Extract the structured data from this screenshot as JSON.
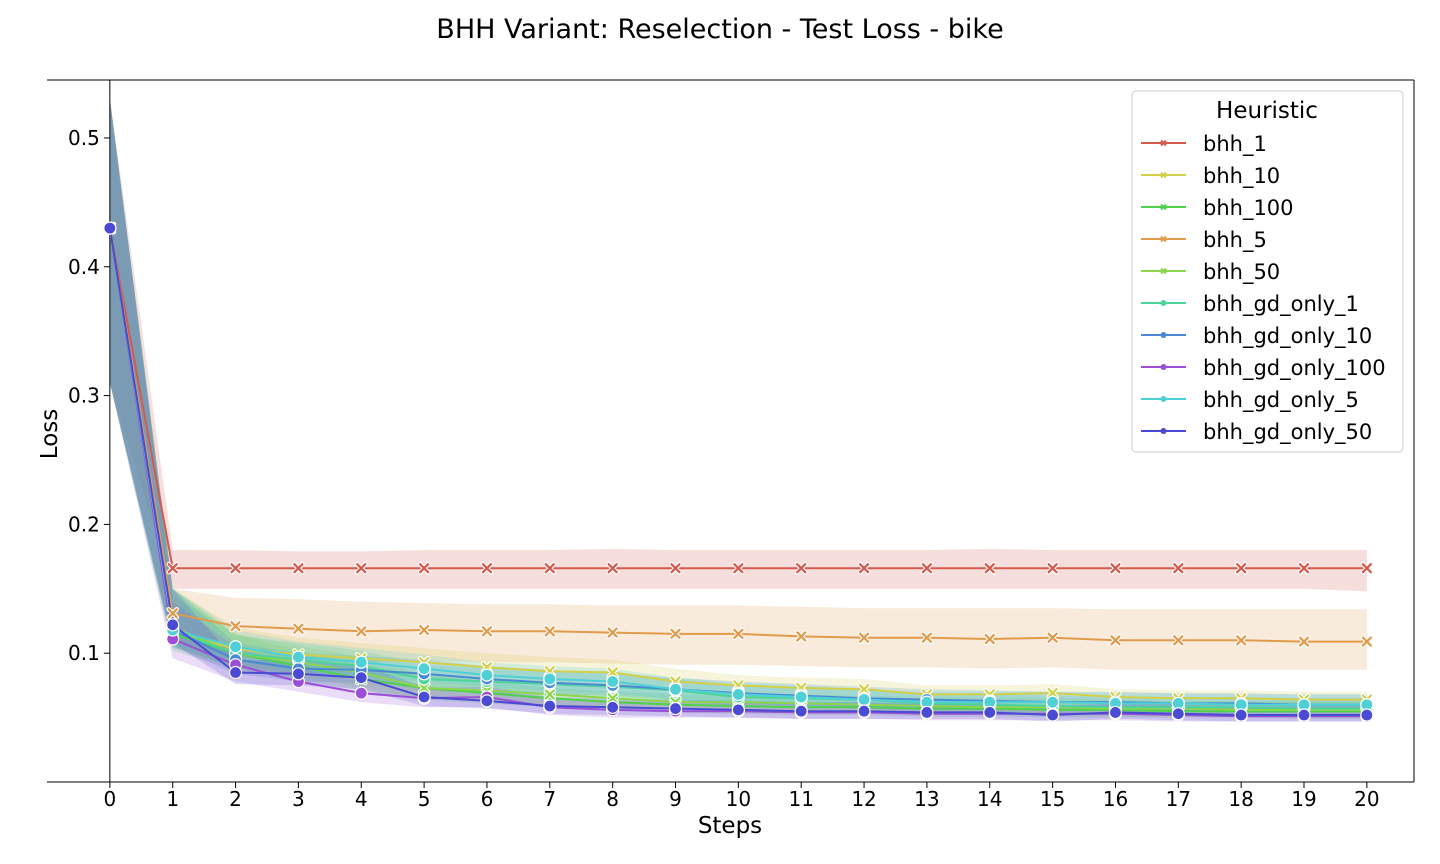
{
  "chart_data": {
    "type": "line",
    "title": "BHH Variant: Reselection - Test Loss - bike",
    "xlabel": "Steps",
    "ylabel": "Loss",
    "x": [
      0,
      1,
      2,
      3,
      4,
      5,
      6,
      7,
      8,
      9,
      10,
      11,
      12,
      13,
      14,
      15,
      16,
      17,
      18,
      19,
      20
    ],
    "x_ticks": [
      "0",
      "1",
      "2",
      "3",
      "4",
      "5",
      "6",
      "7",
      "8",
      "9",
      "10",
      "11",
      "12",
      "13",
      "14",
      "15",
      "16",
      "17",
      "18",
      "19",
      "20"
    ],
    "y_ticks": [
      "0.1",
      "0.2",
      "0.3",
      "0.4",
      "0.5"
    ],
    "y_tick_values": [
      0.1,
      0.2,
      0.3,
      0.4,
      0.5
    ],
    "xlim": [
      -1,
      20.75
    ],
    "ylim": [
      0.0,
      0.545
    ],
    "legend": {
      "title": "Heuristic",
      "position": "top-right"
    },
    "series": [
      {
        "name": "bhh_1",
        "color": "#d45a4e",
        "marker": "x",
        "values": [
          0.43,
          0.166,
          0.166,
          0.166,
          0.166,
          0.166,
          0.166,
          0.166,
          0.166,
          0.166,
          0.166,
          0.166,
          0.166,
          0.166,
          0.166,
          0.166,
          0.166,
          0.166,
          0.166,
          0.166,
          0.166
        ],
        "band_low": [
          0.31,
          0.15,
          0.15,
          0.15,
          0.15,
          0.15,
          0.15,
          0.15,
          0.15,
          0.15,
          0.15,
          0.15,
          0.15,
          0.15,
          0.15,
          0.15,
          0.15,
          0.15,
          0.15,
          0.15,
          0.148
        ],
        "band_high": [
          0.53,
          0.18,
          0.18,
          0.179,
          0.179,
          0.18,
          0.18,
          0.18,
          0.181,
          0.18,
          0.18,
          0.18,
          0.18,
          0.18,
          0.181,
          0.18,
          0.18,
          0.18,
          0.18,
          0.18,
          0.18
        ]
      },
      {
        "name": "bhh_10",
        "color": "#d2cf4a",
        "marker": "x",
        "values": [
          0.43,
          0.118,
          0.103,
          0.099,
          0.096,
          0.093,
          0.089,
          0.086,
          0.085,
          0.078,
          0.075,
          0.073,
          0.072,
          0.068,
          0.068,
          0.069,
          0.066,
          0.065,
          0.065,
          0.064,
          0.064
        ],
        "band_low": [
          0.31,
          0.105,
          0.09,
          0.087,
          0.083,
          0.081,
          0.078,
          0.076,
          0.075,
          0.07,
          0.067,
          0.065,
          0.064,
          0.061,
          0.061,
          0.062,
          0.06,
          0.059,
          0.059,
          0.058,
          0.058
        ],
        "band_high": [
          0.53,
          0.15,
          0.12,
          0.112,
          0.108,
          0.104,
          0.1,
          0.097,
          0.095,
          0.088,
          0.083,
          0.081,
          0.08,
          0.075,
          0.075,
          0.076,
          0.072,
          0.071,
          0.071,
          0.07,
          0.07
        ]
      },
      {
        "name": "bhh_100",
        "color": "#4fd14c",
        "marker": "x",
        "values": [
          0.43,
          0.115,
          0.1,
          0.09,
          0.08,
          0.073,
          0.069,
          0.065,
          0.062,
          0.06,
          0.059,
          0.058,
          0.058,
          0.057,
          0.057,
          0.056,
          0.056,
          0.055,
          0.055,
          0.055,
          0.055
        ],
        "band_low": [
          0.31,
          0.102,
          0.087,
          0.079,
          0.071,
          0.064,
          0.061,
          0.058,
          0.056,
          0.054,
          0.053,
          0.052,
          0.052,
          0.051,
          0.051,
          0.05,
          0.05,
          0.05,
          0.05,
          0.049,
          0.049
        ],
        "band_high": [
          0.53,
          0.145,
          0.115,
          0.102,
          0.091,
          0.083,
          0.078,
          0.073,
          0.07,
          0.068,
          0.067,
          0.066,
          0.065,
          0.064,
          0.064,
          0.063,
          0.063,
          0.062,
          0.062,
          0.062,
          0.062
        ]
      },
      {
        "name": "bhh_5",
        "color": "#e09b4c",
        "marker": "x",
        "values": [
          0.43,
          0.131,
          0.121,
          0.119,
          0.117,
          0.118,
          0.117,
          0.117,
          0.116,
          0.115,
          0.115,
          0.113,
          0.112,
          0.112,
          0.111,
          0.112,
          0.11,
          0.11,
          0.11,
          0.109,
          0.109
        ],
        "band_low": [
          0.31,
          0.11,
          0.097,
          0.095,
          0.093,
          0.094,
          0.093,
          0.093,
          0.092,
          0.091,
          0.091,
          0.09,
          0.089,
          0.089,
          0.088,
          0.089,
          0.087,
          0.087,
          0.087,
          0.087,
          0.087
        ],
        "band_high": [
          0.53,
          0.15,
          0.143,
          0.142,
          0.14,
          0.139,
          0.138,
          0.138,
          0.137,
          0.137,
          0.137,
          0.136,
          0.135,
          0.135,
          0.135,
          0.135,
          0.134,
          0.134,
          0.134,
          0.134,
          0.134
        ]
      },
      {
        "name": "bhh_50",
        "color": "#8dd54c",
        "marker": "x",
        "values": [
          0.43,
          0.12,
          0.1,
          0.093,
          0.085,
          0.073,
          0.071,
          0.068,
          0.065,
          0.062,
          0.062,
          0.061,
          0.06,
          0.059,
          0.058,
          0.058,
          0.057,
          0.057,
          0.056,
          0.056,
          0.056
        ],
        "band_low": [
          0.31,
          0.106,
          0.088,
          0.081,
          0.074,
          0.064,
          0.063,
          0.06,
          0.058,
          0.056,
          0.055,
          0.055,
          0.054,
          0.053,
          0.052,
          0.052,
          0.051,
          0.051,
          0.051,
          0.05,
          0.05
        ],
        "band_high": [
          0.53,
          0.15,
          0.115,
          0.106,
          0.097,
          0.083,
          0.08,
          0.076,
          0.073,
          0.069,
          0.069,
          0.068,
          0.067,
          0.066,
          0.065,
          0.065,
          0.064,
          0.063,
          0.063,
          0.063,
          0.063
        ]
      },
      {
        "name": "bhh_gd_only_1",
        "color": "#4dd49a",
        "marker": "o",
        "values": [
          0.43,
          0.117,
          0.1,
          0.095,
          0.09,
          0.08,
          0.078,
          0.076,
          0.074,
          0.071,
          0.066,
          0.065,
          0.064,
          0.061,
          0.06,
          0.059,
          0.058,
          0.058,
          0.058,
          0.057,
          0.057
        ],
        "band_low": [
          0.31,
          0.104,
          0.089,
          0.084,
          0.08,
          0.071,
          0.069,
          0.067,
          0.066,
          0.063,
          0.059,
          0.058,
          0.057,
          0.055,
          0.054,
          0.053,
          0.052,
          0.052,
          0.052,
          0.051,
          0.051
        ],
        "band_high": [
          0.53,
          0.15,
          0.114,
          0.108,
          0.102,
          0.091,
          0.088,
          0.086,
          0.084,
          0.08,
          0.075,
          0.074,
          0.072,
          0.069,
          0.068,
          0.067,
          0.066,
          0.066,
          0.066,
          0.065,
          0.065
        ]
      },
      {
        "name": "bhh_gd_only_10",
        "color": "#4a8ad4",
        "marker": "o",
        "values": [
          0.43,
          0.118,
          0.095,
          0.088,
          0.087,
          0.084,
          0.08,
          0.077,
          0.075,
          0.072,
          0.069,
          0.067,
          0.065,
          0.064,
          0.063,
          0.062,
          0.062,
          0.061,
          0.061,
          0.06,
          0.06
        ],
        "band_low": [
          0.31,
          0.105,
          0.084,
          0.078,
          0.077,
          0.074,
          0.071,
          0.068,
          0.067,
          0.064,
          0.061,
          0.06,
          0.058,
          0.057,
          0.056,
          0.056,
          0.056,
          0.055,
          0.055,
          0.054,
          0.054
        ],
        "band_high": [
          0.53,
          0.15,
          0.108,
          0.1,
          0.098,
          0.095,
          0.09,
          0.087,
          0.085,
          0.081,
          0.078,
          0.076,
          0.074,
          0.072,
          0.071,
          0.07,
          0.07,
          0.069,
          0.069,
          0.068,
          0.068
        ]
      },
      {
        "name": "bhh_gd_only_100",
        "color": "#9a4fd6",
        "marker": "o",
        "values": [
          0.43,
          0.111,
          0.091,
          0.078,
          0.069,
          0.065,
          0.066,
          0.058,
          0.056,
          0.055,
          0.055,
          0.054,
          0.054,
          0.053,
          0.053,
          0.053,
          0.053,
          0.052,
          0.051,
          0.051,
          0.051
        ],
        "band_low": [
          0.31,
          0.096,
          0.078,
          0.07,
          0.062,
          0.058,
          0.058,
          0.052,
          0.05,
          0.05,
          0.05,
          0.049,
          0.049,
          0.048,
          0.048,
          0.048,
          0.048,
          0.047,
          0.047,
          0.047,
          0.047
        ],
        "band_high": [
          0.53,
          0.14,
          0.105,
          0.089,
          0.078,
          0.073,
          0.074,
          0.066,
          0.063,
          0.062,
          0.062,
          0.061,
          0.061,
          0.06,
          0.06,
          0.06,
          0.06,
          0.059,
          0.058,
          0.058,
          0.058
        ]
      },
      {
        "name": "bhh_gd_only_5",
        "color": "#4fcfd6",
        "marker": "o",
        "values": [
          0.43,
          0.118,
          0.105,
          0.097,
          0.093,
          0.088,
          0.083,
          0.08,
          0.078,
          0.072,
          0.068,
          0.066,
          0.064,
          0.062,
          0.062,
          0.062,
          0.061,
          0.061,
          0.06,
          0.06,
          0.06
        ],
        "band_low": [
          0.31,
          0.105,
          0.094,
          0.086,
          0.082,
          0.078,
          0.074,
          0.071,
          0.069,
          0.064,
          0.061,
          0.059,
          0.057,
          0.056,
          0.056,
          0.056,
          0.055,
          0.055,
          0.054,
          0.054,
          0.054
        ],
        "band_high": [
          0.53,
          0.15,
          0.118,
          0.109,
          0.104,
          0.099,
          0.093,
          0.09,
          0.088,
          0.081,
          0.077,
          0.075,
          0.072,
          0.07,
          0.07,
          0.07,
          0.069,
          0.069,
          0.068,
          0.068,
          0.068
        ]
      },
      {
        "name": "bhh_gd_only_50",
        "color": "#4a4ad4",
        "marker": "o",
        "values": [
          0.43,
          0.122,
          0.085,
          0.084,
          0.081,
          0.066,
          0.063,
          0.059,
          0.058,
          0.057,
          0.056,
          0.055,
          0.055,
          0.054,
          0.054,
          0.052,
          0.054,
          0.053,
          0.052,
          0.052,
          0.052
        ],
        "band_low": [
          0.31,
          0.108,
          0.076,
          0.075,
          0.072,
          0.059,
          0.057,
          0.053,
          0.052,
          0.051,
          0.05,
          0.049,
          0.049,
          0.049,
          0.049,
          0.047,
          0.049,
          0.048,
          0.047,
          0.047,
          0.047
        ],
        "band_high": [
          0.53,
          0.15,
          0.095,
          0.094,
          0.091,
          0.074,
          0.071,
          0.066,
          0.065,
          0.064,
          0.063,
          0.062,
          0.062,
          0.061,
          0.061,
          0.059,
          0.061,
          0.06,
          0.059,
          0.059,
          0.059
        ]
      }
    ]
  }
}
